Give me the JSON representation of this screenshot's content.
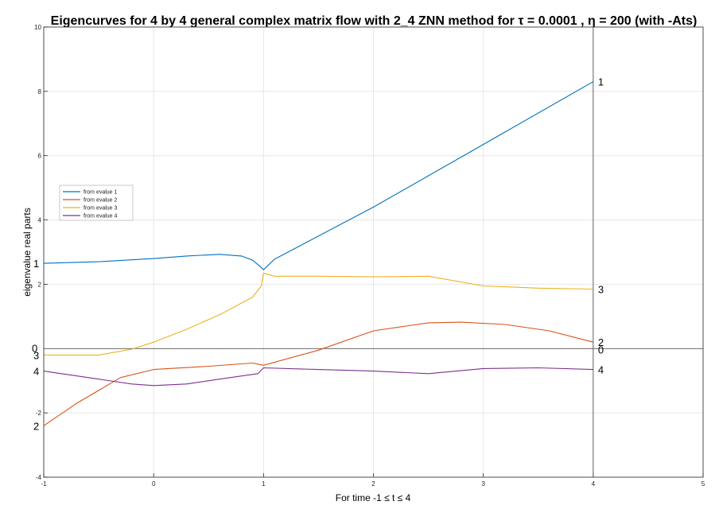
{
  "chart_data": {
    "type": "line",
    "title": "Eigencurves for 4 by 4 general complex matrix flow with 2_4 ZNN method for τ = 0.0001 , η = 200   (with  -Ats)",
    "xlabel": "For time -1 ≤ t ≤ 4",
    "ylabel": "eigenvalue real parts",
    "xlim": [
      -1,
      5
    ],
    "ylim": [
      -4,
      10
    ],
    "xticks": [
      "-1",
      "0",
      "1",
      "2",
      "3",
      "4",
      "5"
    ],
    "yticks": [
      "-4",
      "-2",
      "2",
      "4",
      "6",
      "8",
      "10"
    ],
    "grid": true,
    "legend_position": "middle-left",
    "reference_lines": [
      {
        "type": "horizontal",
        "y": 0
      },
      {
        "type": "vertical",
        "x": 4
      }
    ],
    "start_labels": [
      {
        "text": "1",
        "y": 2.65
      },
      {
        "text": "3",
        "y": -0.2
      },
      {
        "text": "4",
        "y": -0.7
      },
      {
        "text": "2",
        "y": -2.4
      },
      {
        "text": "0",
        "y": 0.0,
        "color": "#0000cc"
      }
    ],
    "end_labels": [
      {
        "text": "1",
        "y": 8.3
      },
      {
        "text": "3",
        "y": 1.85
      },
      {
        "text": "2",
        "y": 0.2
      },
      {
        "text": "0",
        "y": 0.0,
        "color": "#cc0000"
      },
      {
        "text": "4",
        "y": -0.65
      }
    ],
    "series": [
      {
        "name": "from evalue 1",
        "color": "#0072BD",
        "points": [
          [
            -1,
            2.65
          ],
          [
            -0.5,
            2.7
          ],
          [
            0,
            2.8
          ],
          [
            0.3,
            2.88
          ],
          [
            0.6,
            2.93
          ],
          [
            0.8,
            2.88
          ],
          [
            0.9,
            2.75
          ],
          [
            0.97,
            2.55
          ],
          [
            1.0,
            2.45
          ],
          [
            1.1,
            2.78
          ],
          [
            2,
            4.4
          ],
          [
            3,
            6.35
          ],
          [
            4,
            8.3
          ]
        ]
      },
      {
        "name": "from evalue 2",
        "color": "#D95319",
        "points": [
          [
            -1,
            -2.4
          ],
          [
            -0.7,
            -1.7
          ],
          [
            -0.3,
            -0.9
          ],
          [
            0,
            -0.65
          ],
          [
            0.5,
            -0.55
          ],
          [
            0.9,
            -0.45
          ],
          [
            1.0,
            -0.52
          ],
          [
            1.5,
            -0.05
          ],
          [
            2,
            0.55
          ],
          [
            2.5,
            0.8
          ],
          [
            2.8,
            0.82
          ],
          [
            3.2,
            0.75
          ],
          [
            3.6,
            0.55
          ],
          [
            4,
            0.2
          ]
        ]
      },
      {
        "name": "from evalue 3",
        "color": "#EDB120",
        "points": [
          [
            -1,
            -0.2
          ],
          [
            -0.5,
            -0.2
          ],
          [
            -0.2,
            -0.02
          ],
          [
            0,
            0.2
          ],
          [
            0.3,
            0.6
          ],
          [
            0.6,
            1.05
          ],
          [
            0.9,
            1.6
          ],
          [
            0.98,
            1.95
          ],
          [
            1.0,
            2.35
          ],
          [
            1.1,
            2.25
          ],
          [
            1.5,
            2.25
          ],
          [
            2,
            2.23
          ],
          [
            2.5,
            2.25
          ],
          [
            3,
            1.95
          ],
          [
            3.5,
            1.88
          ],
          [
            4,
            1.85
          ]
        ]
      },
      {
        "name": "from evalue 4",
        "color": "#7E2F8E",
        "points": [
          [
            -1,
            -0.7
          ],
          [
            -0.5,
            -0.95
          ],
          [
            -0.2,
            -1.1
          ],
          [
            0,
            -1.15
          ],
          [
            0.3,
            -1.1
          ],
          [
            0.7,
            -0.9
          ],
          [
            0.95,
            -0.78
          ],
          [
            1.0,
            -0.6
          ],
          [
            1.5,
            -0.65
          ],
          [
            2,
            -0.7
          ],
          [
            2.5,
            -0.78
          ],
          [
            3,
            -0.62
          ],
          [
            3.5,
            -0.6
          ],
          [
            4,
            -0.65
          ]
        ]
      }
    ]
  }
}
